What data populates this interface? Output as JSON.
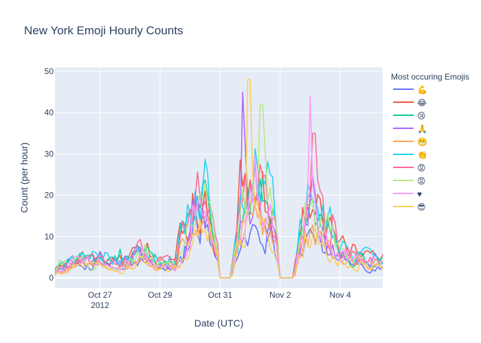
{
  "chart_data": {
    "type": "line",
    "title": "New York Emoji Hourly Counts",
    "xlabel": "Date (UTC)",
    "ylabel": "Count (per hour)",
    "x_tick_labels": [
      {
        "date": "2012-10-27",
        "label": "Oct 27",
        "sublabel": "2012"
      },
      {
        "date": "2012-10-29",
        "label": "Oct 29",
        "sublabel": ""
      },
      {
        "date": "2012-10-31",
        "label": "Oct 31",
        "sublabel": ""
      },
      {
        "date": "2012-11-02",
        "label": "Nov 2",
        "sublabel": ""
      },
      {
        "date": "2012-11-04",
        "label": "Nov 4",
        "sublabel": ""
      }
    ],
    "xlim": [
      "2012-10-25T12:00",
      "2012-11-05T10:00"
    ],
    "y_ticks": [
      0,
      10,
      20,
      30,
      40,
      50
    ],
    "ylim": [
      -2.5,
      51
    ],
    "grid": true,
    "legend_title": "Most occuring Emojis",
    "legend_position": "right",
    "series": [
      {
        "name": "💪",
        "color": "#636efa"
      },
      {
        "name": "😂",
        "color": "#EF553B"
      },
      {
        "name": "😢",
        "color": "#00cc96"
      },
      {
        "name": "🙏",
        "color": "#ab63fa"
      },
      {
        "name": "😬",
        "color": "#FFA15A"
      },
      {
        "name": "👏",
        "color": "#19d3f3"
      },
      {
        "name": "😡",
        "color": "#FF6692"
      },
      {
        "name": "😡",
        "color": "#B6E880"
      },
      {
        "name": "♥",
        "color": "#FF97FF"
      },
      {
        "name": "😎",
        "color": "#FECB52"
      }
    ]
  }
}
